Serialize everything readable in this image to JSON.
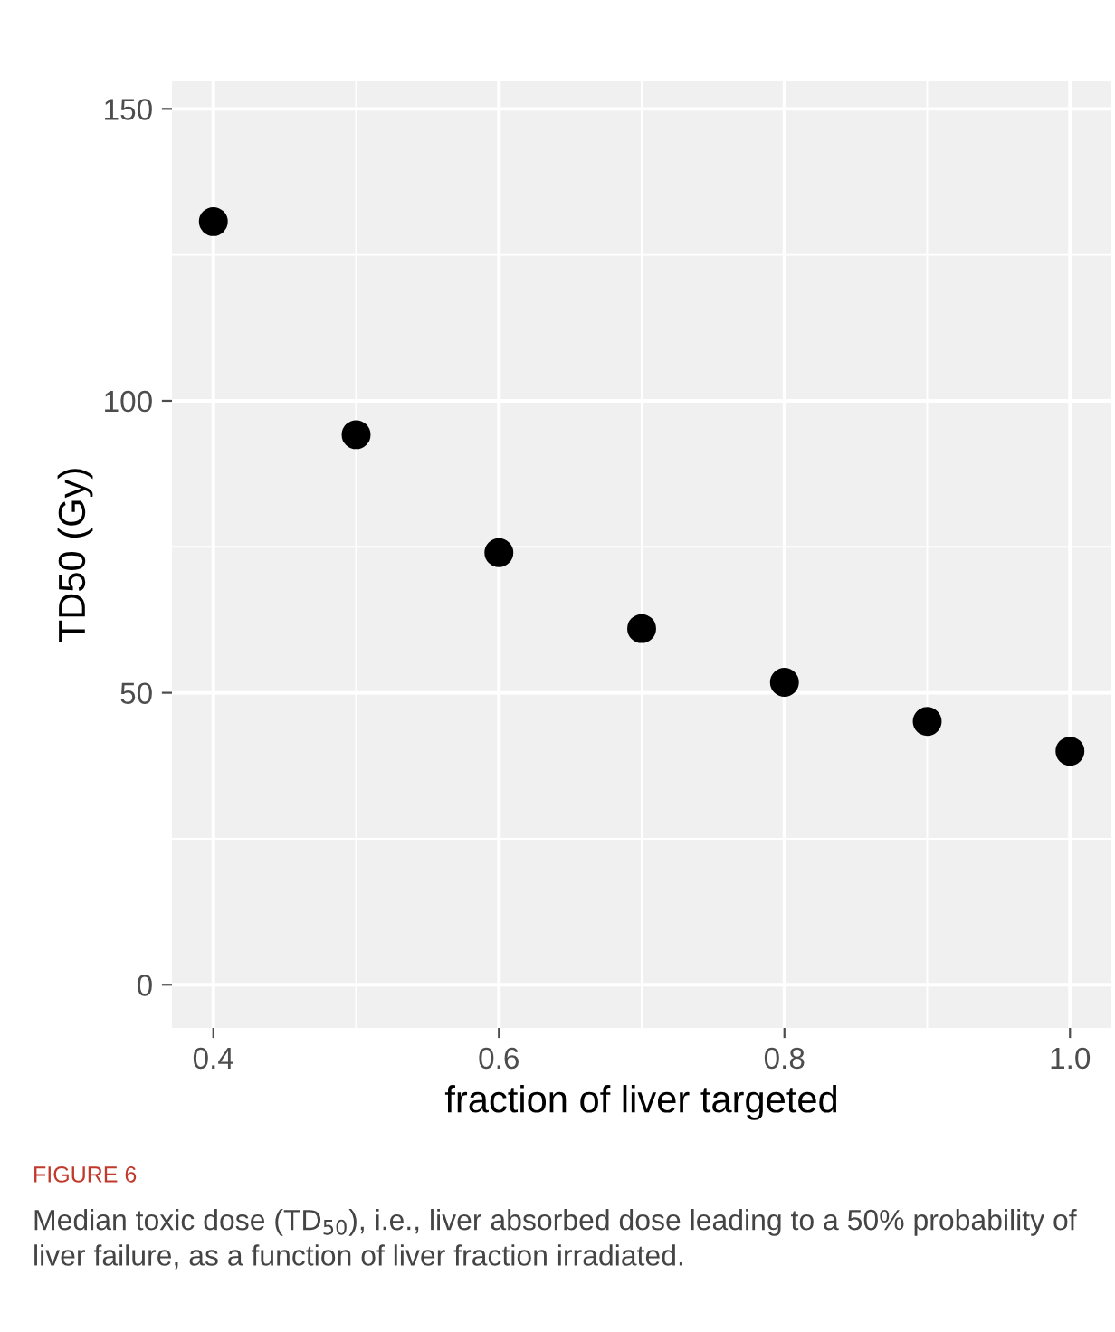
{
  "chart_data": {
    "type": "scatter",
    "x": [
      0.4,
      0.5,
      0.6,
      0.7,
      0.8,
      0.9,
      1.0
    ],
    "series": [
      {
        "color": "#000000",
        "values": [
          130.7,
          94.2,
          74.0,
          61.0,
          51.8,
          45.1,
          40.0
        ]
      }
    ],
    "xlabel": "fraction of liver targeted",
    "ylabel": "TD50 (Gy)",
    "xlim": [
      0.371,
      1.029
    ],
    "ylim": [
      -7.4,
      154.7
    ],
    "xticks": [
      {
        "value": 0.4,
        "label": "0.4"
      },
      {
        "value": 0.6,
        "label": "0.6"
      },
      {
        "value": 0.8,
        "label": "0.8"
      },
      {
        "value": 1.0,
        "label": "1.0"
      }
    ],
    "yticks": [
      0,
      50,
      100,
      150
    ],
    "grid": true,
    "marker": "circle",
    "annotations": [
      "FIGURE 6",
      "Median toxic dose (TD$_{50}$), i.e., liver absorbed dose leading to a 50% probability of liver failure, as a function of liver fraction irradiated."
    ]
  }
}
